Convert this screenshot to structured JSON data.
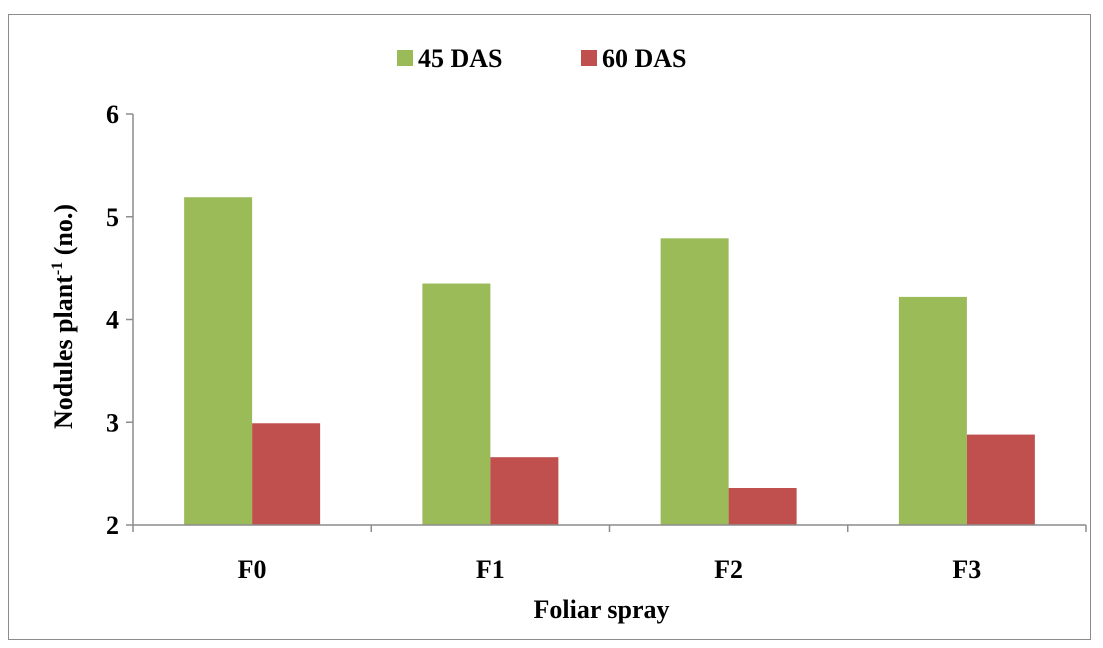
{
  "chart_data": {
    "type": "bar",
    "categories": [
      "F0",
      "F1",
      "F2",
      "F3"
    ],
    "series": [
      {
        "name": "45 DAS",
        "values": [
          5.19,
          4.35,
          4.79,
          4.22
        ],
        "color": "#9bbb59"
      },
      {
        "name": "60 DAS",
        "values": [
          2.99,
          2.66,
          2.36,
          2.88
        ],
        "color": "#c0504d"
      }
    ],
    "xlabel": "Foliar spray",
    "ylabel_main": "Nodules plant",
    "ylabel_sup": "-1",
    "ylabel_tail": " (no.)",
    "ylim": [
      2,
      6
    ],
    "yticks": [
      "2",
      "3",
      "4",
      "5",
      "6"
    ],
    "grid": false,
    "legend_position": "top-center"
  }
}
